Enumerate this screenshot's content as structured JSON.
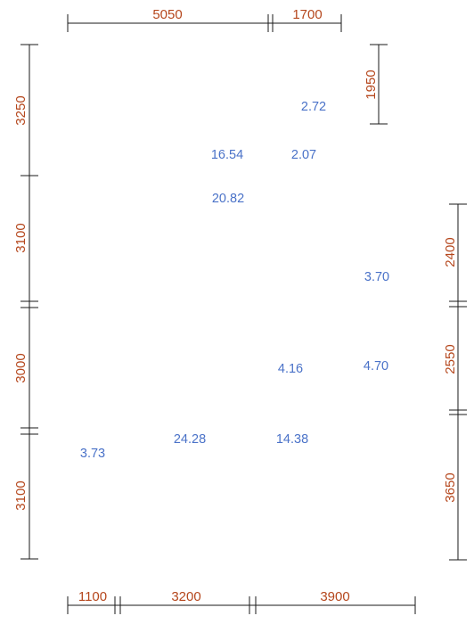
{
  "dimensions": {
    "top": [
      "5050",
      "1700"
    ],
    "bottom": [
      "1100",
      "3200",
      "3900"
    ],
    "left": [
      "3250",
      "3100",
      "3000",
      "3100"
    ],
    "right_upper": [
      "1950"
    ],
    "right": [
      "2400",
      "2550",
      "3650"
    ]
  },
  "room_areas": [
    "2.72",
    "16.54",
    "2.07",
    "20.82",
    "3.70",
    "4.16",
    "4.70",
    "3.73",
    "24.28",
    "14.38"
  ],
  "colors": {
    "dimension_text": "#b5471d",
    "area_text": "#4a72c8",
    "line": "#1a1a1a"
  }
}
